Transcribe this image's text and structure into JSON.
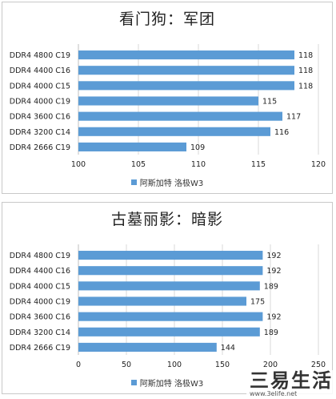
{
  "colors": {
    "bar": "#5b9bd5",
    "grid": "#d9d9d9",
    "axis": "#bfbfbf"
  },
  "chart_data": [
    {
      "type": "bar",
      "orientation": "horizontal",
      "title": "看门狗：军团",
      "categories": [
        "DDR4 4800 C19",
        "DDR4 4400 C16",
        "DDR4 4000 C15",
        "DDR4 4000 C19",
        "DDR4 3600 C16",
        "DDR4 3200 C14",
        "DDR4 2666 C19"
      ],
      "series": [
        {
          "name": "阿斯加特 洛极W3",
          "values": [
            118,
            118,
            118,
            115,
            117,
            116,
            109
          ]
        }
      ],
      "xlim": [
        100,
        120
      ],
      "xticks": [
        "100",
        "105",
        "110",
        "115",
        "120"
      ],
      "grid": true,
      "legend": "bottom"
    },
    {
      "type": "bar",
      "orientation": "horizontal",
      "title": "古墓丽影：暗影",
      "categories": [
        "DDR4 4800 C19",
        "DDR4 4400 C16",
        "DDR4 4000 C15",
        "DDR4 4000 C19",
        "DDR4 3600 C16",
        "DDR4 3200 C14",
        "DDR4 2666 C19"
      ],
      "series": [
        {
          "name": "阿斯加特 洛极W3",
          "values": [
            192,
            192,
            189,
            175,
            192,
            189,
            144
          ]
        }
      ],
      "xlim": [
        0,
        250
      ],
      "xticks": [
        "0",
        "50",
        "100",
        "150",
        "200",
        "250"
      ],
      "grid": true,
      "legend": "bottom"
    }
  ],
  "watermark": {
    "brand": "三易生活",
    "url": "www.3elife.net"
  }
}
